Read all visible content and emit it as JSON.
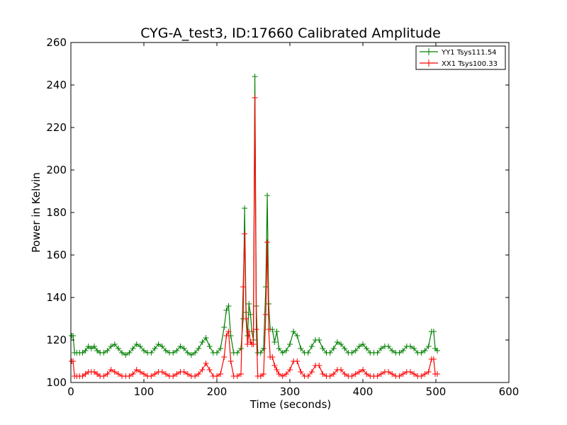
{
  "chart_data": {
    "type": "line",
    "title": "CYG-A_test3, ID:17660 Calibrated Amplitude",
    "xlabel": "Time (seconds)",
    "ylabel": "Power in Kelvin",
    "xlim": [
      0,
      600
    ],
    "ylim": [
      100,
      260
    ],
    "xticks": [
      "0",
      "100",
      "200",
      "300",
      "400",
      "500",
      "600"
    ],
    "yticks": [
      "100",
      "120",
      "140",
      "160",
      "180",
      "200",
      "220",
      "240",
      "260"
    ],
    "grid": false,
    "legend_position": "top-right",
    "marker": "+",
    "series": [
      {
        "name": "YY1 Tsys111.54",
        "color": "#008000",
        "points": [
          [
            1,
            122
          ],
          [
            3,
            122
          ],
          [
            5,
            114
          ],
          [
            8,
            114
          ],
          [
            12,
            114
          ],
          [
            16,
            114
          ],
          [
            20,
            115
          ],
          [
            24,
            117
          ],
          [
            28,
            116
          ],
          [
            32,
            117
          ],
          [
            36,
            115
          ],
          [
            40,
            114
          ],
          [
            45,
            114
          ],
          [
            50,
            115
          ],
          [
            55,
            117
          ],
          [
            60,
            118
          ],
          [
            65,
            116
          ],
          [
            70,
            114
          ],
          [
            75,
            113
          ],
          [
            80,
            114
          ],
          [
            85,
            116
          ],
          [
            90,
            118
          ],
          [
            95,
            117
          ],
          [
            100,
            115
          ],
          [
            105,
            114
          ],
          [
            110,
            114
          ],
          [
            115,
            116
          ],
          [
            120,
            118
          ],
          [
            125,
            117
          ],
          [
            130,
            115
          ],
          [
            135,
            114
          ],
          [
            140,
            114
          ],
          [
            145,
            115
          ],
          [
            150,
            117
          ],
          [
            155,
            116
          ],
          [
            160,
            114
          ],
          [
            165,
            113
          ],
          [
            170,
            114
          ],
          [
            175,
            116
          ],
          [
            180,
            119
          ],
          [
            185,
            121
          ],
          [
            190,
            117
          ],
          [
            195,
            114
          ],
          [
            200,
            114
          ],
          [
            205,
            116
          ],
          [
            210,
            126
          ],
          [
            213,
            134
          ],
          [
            216,
            136
          ],
          [
            219,
            122
          ],
          [
            223,
            114
          ],
          [
            228,
            114
          ],
          [
            233,
            116
          ],
          [
            236,
            130
          ],
          [
            238,
            182
          ],
          [
            240,
            133
          ],
          [
            242,
            122
          ],
          [
            244,
            137
          ],
          [
            246,
            132
          ],
          [
            248,
            124
          ],
          [
            250,
            120
          ],
          [
            252,
            244
          ],
          [
            254,
            136
          ],
          [
            256,
            114
          ],
          [
            260,
            114
          ],
          [
            264,
            116
          ],
          [
            267,
            145
          ],
          [
            269,
            188
          ],
          [
            271,
            137
          ],
          [
            273,
            125
          ],
          [
            276,
            125
          ],
          [
            279,
            119
          ],
          [
            282,
            124
          ],
          [
            285,
            116
          ],
          [
            290,
            114
          ],
          [
            295,
            115
          ],
          [
            300,
            118
          ],
          [
            305,
            124
          ],
          [
            310,
            122
          ],
          [
            315,
            116
          ],
          [
            320,
            114
          ],
          [
            325,
            114
          ],
          [
            330,
            117
          ],
          [
            335,
            120
          ],
          [
            340,
            120
          ],
          [
            345,
            116
          ],
          [
            350,
            114
          ],
          [
            355,
            114
          ],
          [
            360,
            116
          ],
          [
            365,
            119
          ],
          [
            370,
            118
          ],
          [
            375,
            116
          ],
          [
            380,
            114
          ],
          [
            385,
            114
          ],
          [
            390,
            115
          ],
          [
            395,
            117
          ],
          [
            400,
            118
          ],
          [
            405,
            116
          ],
          [
            410,
            114
          ],
          [
            415,
            114
          ],
          [
            420,
            114
          ],
          [
            425,
            116
          ],
          [
            430,
            117
          ],
          [
            435,
            117
          ],
          [
            440,
            115
          ],
          [
            445,
            114
          ],
          [
            450,
            114
          ],
          [
            455,
            115
          ],
          [
            460,
            117
          ],
          [
            465,
            117
          ],
          [
            470,
            116
          ],
          [
            475,
            114
          ],
          [
            480,
            114
          ],
          [
            485,
            115
          ],
          [
            490,
            117
          ],
          [
            494,
            124
          ],
          [
            497,
            124
          ],
          [
            499,
            116
          ],
          [
            502,
            115
          ]
        ]
      },
      {
        "name": "XX1 Tsys100.33",
        "color": "#ff0000",
        "points": [
          [
            1,
            110
          ],
          [
            3,
            110
          ],
          [
            5,
            103
          ],
          [
            8,
            103
          ],
          [
            12,
            103
          ],
          [
            16,
            103
          ],
          [
            20,
            104
          ],
          [
            24,
            105
          ],
          [
            28,
            105
          ],
          [
            32,
            105
          ],
          [
            36,
            104
          ],
          [
            40,
            103
          ],
          [
            45,
            103
          ],
          [
            50,
            104
          ],
          [
            55,
            106
          ],
          [
            60,
            105
          ],
          [
            65,
            104
          ],
          [
            70,
            103
          ],
          [
            75,
            103
          ],
          [
            80,
            103
          ],
          [
            85,
            104
          ],
          [
            90,
            106
          ],
          [
            95,
            105
          ],
          [
            100,
            104
          ],
          [
            105,
            103
          ],
          [
            110,
            103
          ],
          [
            115,
            104
          ],
          [
            120,
            105
          ],
          [
            125,
            105
          ],
          [
            130,
            104
          ],
          [
            135,
            103
          ],
          [
            140,
            103
          ],
          [
            145,
            104
          ],
          [
            150,
            105
          ],
          [
            155,
            105
          ],
          [
            160,
            104
          ],
          [
            165,
            103
          ],
          [
            170,
            103
          ],
          [
            175,
            104
          ],
          [
            180,
            106
          ],
          [
            185,
            109
          ],
          [
            190,
            106
          ],
          [
            195,
            103
          ],
          [
            200,
            103
          ],
          [
            205,
            104
          ],
          [
            210,
            112
          ],
          [
            213,
            122
          ],
          [
            216,
            124
          ],
          [
            219,
            110
          ],
          [
            223,
            103
          ],
          [
            228,
            103
          ],
          [
            233,
            104
          ],
          [
            236,
            145
          ],
          [
            238,
            170
          ],
          [
            240,
            130
          ],
          [
            242,
            118
          ],
          [
            244,
            124
          ],
          [
            246,
            119
          ],
          [
            248,
            118
          ],
          [
            250,
            118
          ],
          [
            252,
            234
          ],
          [
            254,
            125
          ],
          [
            256,
            103
          ],
          [
            260,
            103
          ],
          [
            264,
            104
          ],
          [
            267,
            132
          ],
          [
            269,
            166
          ],
          [
            271,
            125
          ],
          [
            273,
            112
          ],
          [
            276,
            112
          ],
          [
            279,
            108
          ],
          [
            282,
            106
          ],
          [
            285,
            104
          ],
          [
            290,
            103
          ],
          [
            295,
            104
          ],
          [
            300,
            106
          ],
          [
            305,
            110
          ],
          [
            310,
            110
          ],
          [
            315,
            105
          ],
          [
            320,
            103
          ],
          [
            325,
            103
          ],
          [
            330,
            105
          ],
          [
            335,
            108
          ],
          [
            340,
            108
          ],
          [
            345,
            104
          ],
          [
            350,
            103
          ],
          [
            355,
            103
          ],
          [
            360,
            104
          ],
          [
            365,
            106
          ],
          [
            370,
            106
          ],
          [
            375,
            104
          ],
          [
            380,
            103
          ],
          [
            385,
            103
          ],
          [
            390,
            104
          ],
          [
            395,
            105
          ],
          [
            400,
            106
          ],
          [
            405,
            104
          ],
          [
            410,
            103
          ],
          [
            415,
            103
          ],
          [
            420,
            103
          ],
          [
            425,
            104
          ],
          [
            430,
            105
          ],
          [
            435,
            105
          ],
          [
            440,
            104
          ],
          [
            445,
            103
          ],
          [
            450,
            103
          ],
          [
            455,
            104
          ],
          [
            460,
            105
          ],
          [
            465,
            105
          ],
          [
            470,
            104
          ],
          [
            475,
            103
          ],
          [
            480,
            103
          ],
          [
            485,
            104
          ],
          [
            490,
            105
          ],
          [
            494,
            111
          ],
          [
            497,
            111
          ],
          [
            499,
            104
          ],
          [
            502,
            104
          ]
        ]
      }
    ]
  }
}
